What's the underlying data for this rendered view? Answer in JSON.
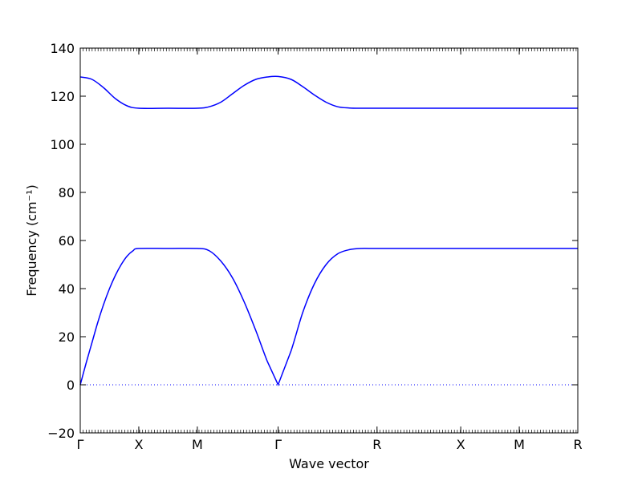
{
  "chart_data": {
    "type": "line",
    "title": "",
    "xlabel": "Wave vector",
    "ylabel": "Frequency (cm⁻¹)",
    "ylim": [
      -20,
      140
    ],
    "yticks": [
      -20,
      0,
      20,
      40,
      60,
      80,
      100,
      120,
      140
    ],
    "ytick_labels": [
      "−20",
      "0",
      "20",
      "40",
      "60",
      "80",
      "100",
      "120",
      "140"
    ],
    "xlim": [
      0,
      8.5
    ],
    "xticks": [
      {
        "x": 0,
        "label": "Γ"
      },
      {
        "x": 1.0,
        "label": "X"
      },
      {
        "x": 2.0,
        "label": "M"
      },
      {
        "x": 3.38,
        "label": "Γ"
      },
      {
        "x": 5.07,
        "label": "R"
      },
      {
        "x": 6.5,
        "label": "X"
      },
      {
        "x": 7.5,
        "label": "M"
      },
      {
        "x": 8.5,
        "label": "R"
      }
    ],
    "zero_line": {
      "y": 0,
      "style": "dotted"
    },
    "series": [
      {
        "x": [
          0,
          0.1,
          0.2,
          0.3,
          0.4,
          0.5,
          0.6,
          0.7,
          0.8,
          0.9,
          1.0,
          1.5,
          2.0,
          2.2,
          2.4,
          2.6,
          2.8,
          3.0,
          3.2,
          3.38,
          3.6,
          3.8,
          4.0,
          4.2,
          4.4,
          4.6,
          4.8,
          5.07,
          6.5,
          7.5,
          8.5
        ],
        "values": [
          0,
          9,
          17.5,
          26,
          33.5,
          40,
          45.5,
          50,
          53.5,
          55.7,
          56.7,
          56.7,
          56.7,
          55.8,
          51.5,
          44.5,
          34.5,
          22.5,
          9.5,
          0,
          14,
          30,
          42,
          50,
          54.5,
          56.2,
          56.7,
          56.7,
          56.7,
          56.7,
          56.7
        ]
      },
      {
        "x": [
          0,
          0.2,
          0.4,
          0.6,
          0.8,
          1.0,
          1.5,
          2.0,
          2.2,
          2.4,
          2.6,
          2.8,
          3.0,
          3.2,
          3.38,
          3.6,
          3.8,
          4.0,
          4.2,
          4.4,
          4.6,
          4.8,
          5.07,
          6.5,
          7.5,
          8.5
        ],
        "values": [
          128,
          127,
          123.5,
          119,
          116,
          115,
          115,
          115,
          115.6,
          117.5,
          121,
          124.5,
          127,
          128,
          128.2,
          127,
          124,
          120.5,
          117.5,
          115.6,
          115.1,
          115,
          115,
          115,
          115,
          115
        ]
      }
    ],
    "colors": {
      "line": "#0000ff",
      "zero_line": "#0000ff",
      "axes": "#000000"
    },
    "grid": false,
    "legend": "none"
  }
}
